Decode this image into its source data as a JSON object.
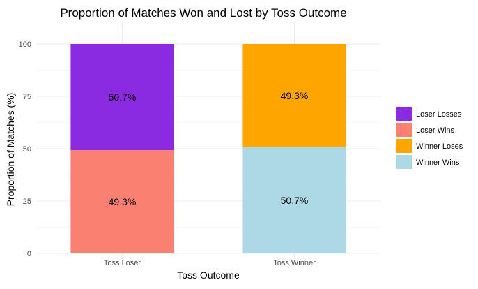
{
  "chart_data": {
    "type": "bar",
    "stacked": true,
    "title": "Proportion of Matches Won and Lost by Toss Outcome",
    "xlabel": "Toss Outcome",
    "ylabel": "Proportion of Matches (%)",
    "ylim": [
      0,
      100
    ],
    "yticks": [
      "0",
      "25",
      "50",
      "75",
      "100"
    ],
    "grid": true,
    "legend_position": "right",
    "categories": [
      "Toss Loser",
      "Toss Winner"
    ],
    "bars": [
      {
        "category": "Toss Loser",
        "segments": [
          {
            "series": "Loser Wins",
            "value": 49.3,
            "label": "49.3%"
          },
          {
            "series": "Loser Losses",
            "value": 50.7,
            "label": "50.7%"
          }
        ]
      },
      {
        "category": "Toss Winner",
        "segments": [
          {
            "series": "Winner Wins",
            "value": 50.7,
            "label": "50.7%"
          },
          {
            "series": "Winner Loses",
            "value": 49.3,
            "label": "49.3%"
          }
        ]
      }
    ],
    "legend": [
      {
        "name": "Loser Losses",
        "color": "#8a2be2"
      },
      {
        "name": "Loser Wins",
        "color": "#fa8072"
      },
      {
        "name": "Winner Loses",
        "color": "#ffa500"
      },
      {
        "name": "Winner Wins",
        "color": "#add8e6"
      }
    ]
  }
}
